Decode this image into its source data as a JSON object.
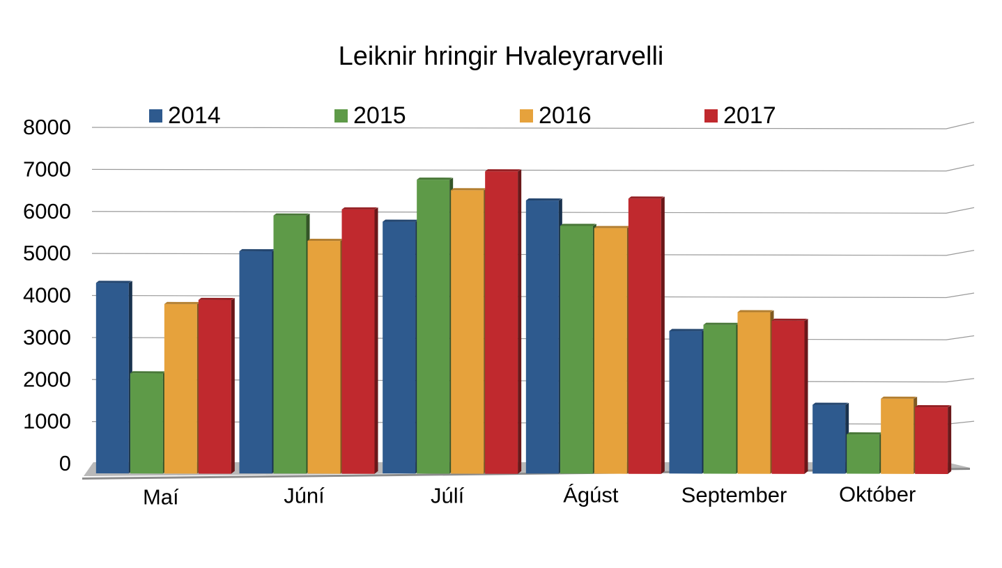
{
  "chart_data": {
    "type": "bar",
    "title": "Leiknir hringir Hvaleyrarvelli",
    "xlabel": "",
    "ylabel": "",
    "ylim": [
      0,
      8000
    ],
    "yticks": [
      0,
      1000,
      2000,
      3000,
      4000,
      5000,
      6000,
      7000,
      8000
    ],
    "categories": [
      "Maí",
      "Júní",
      "Júlí",
      "Ágúst",
      "September",
      "Október"
    ],
    "series": [
      {
        "name": "2014",
        "color": "#2e5a8e",
        "values": [
          4400,
          5150,
          5850,
          6350,
          3250,
          1500
        ]
      },
      {
        "name": "2015",
        "color": "#5e9a48",
        "values": [
          2250,
          6000,
          6850,
          5750,
          3400,
          800
        ]
      },
      {
        "name": "2016",
        "color": "#e6a23c",
        "values": [
          3900,
          5400,
          6600,
          5700,
          3700,
          1650
        ]
      },
      {
        "name": "2017",
        "color": "#c0292e",
        "values": [
          4000,
          6150,
          7050,
          6400,
          3500,
          1450
        ]
      }
    ],
    "legend_position": "top",
    "grid": true,
    "style": "3d-clustered-column"
  }
}
